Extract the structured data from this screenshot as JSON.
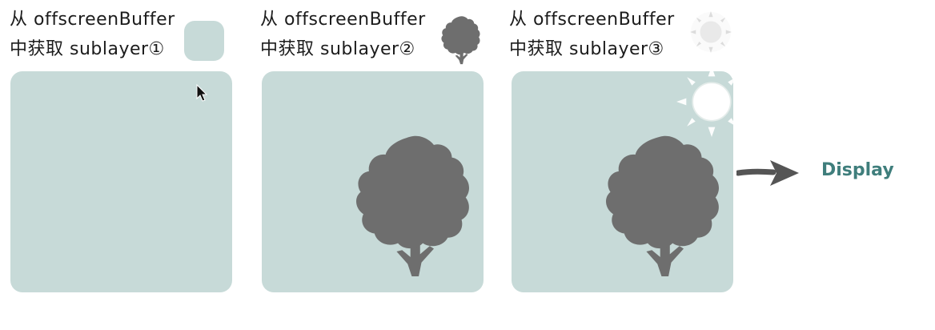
{
  "steps": [
    {
      "line1": "从 offscreenBuffer",
      "line2": "中获取 sublayer①",
      "content": "empty"
    },
    {
      "line1": "从 offscreenBuffer",
      "line2": "中获取 sublayer②",
      "content": "tree"
    },
    {
      "line1": "从 offscreenBuffer",
      "line2": "中获取 sublayer③",
      "content": "tree-and-sun"
    }
  ],
  "output": {
    "label": "Display"
  },
  "colors": {
    "panel": "#c7dad8",
    "tree": "#6e6e6e",
    "sun": "#ffffff",
    "display_text": "#3f7e7c",
    "arrow": "#555555"
  },
  "icons": [
    "tree-icon",
    "sun-icon",
    "arrow-right-icon",
    "mouse-cursor-icon"
  ]
}
